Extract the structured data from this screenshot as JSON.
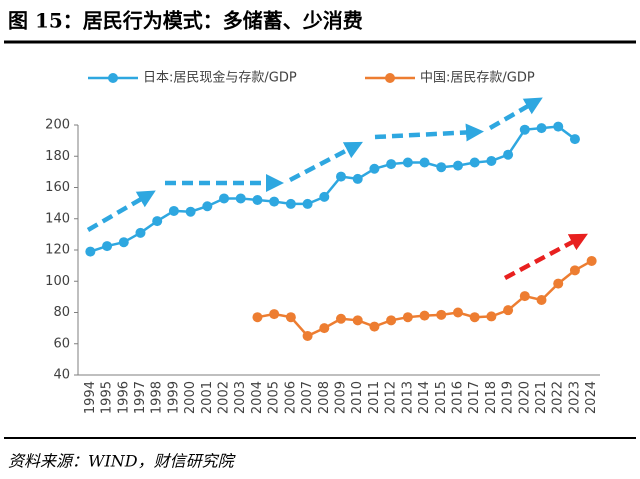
{
  "chart_data": {
    "type": "line",
    "title": "图 15：居民行为模式：多储蓄、少消费",
    "source": "资料来源：WIND，财信研究院",
    "categories": [
      "1994",
      "1995",
      "1996",
      "1997",
      "1998",
      "1999",
      "2000",
      "2001",
      "2002",
      "2003",
      "2004",
      "2005",
      "2006",
      "2007",
      "2008",
      "2009",
      "2010",
      "2011",
      "2012",
      "2013",
      "2014",
      "2015",
      "2016",
      "2017",
      "2018",
      "2019",
      "2020",
      "2021",
      "2022",
      "2023",
      "2024"
    ],
    "series": [
      {
        "name": "日本:居民现金与存款/GDP",
        "color": "#2ea7e0",
        "values": [
          119,
          122.5,
          125,
          131,
          138.5,
          145,
          144.5,
          148,
          153,
          153,
          152,
          151,
          149.5,
          149.5,
          154,
          167,
          165.5,
          172,
          175,
          176,
          176,
          173,
          174,
          176,
          177,
          181,
          197,
          198,
          199,
          191,
          null
        ]
      },
      {
        "name": "中国:居民存款/GDP",
        "color": "#ed7d31",
        "values": [
          null,
          null,
          null,
          null,
          null,
          null,
          null,
          null,
          null,
          null,
          77,
          79,
          77,
          65,
          70,
          76,
          75,
          71,
          75,
          77,
          78,
          78.5,
          80,
          77,
          77.5,
          81.5,
          90.5,
          88,
          98.5,
          107,
          113
        ]
      }
    ],
    "ylim": [
      40,
      200
    ],
    "yticks": [
      40,
      60,
      80,
      100,
      120,
      140,
      160,
      180,
      200
    ]
  }
}
